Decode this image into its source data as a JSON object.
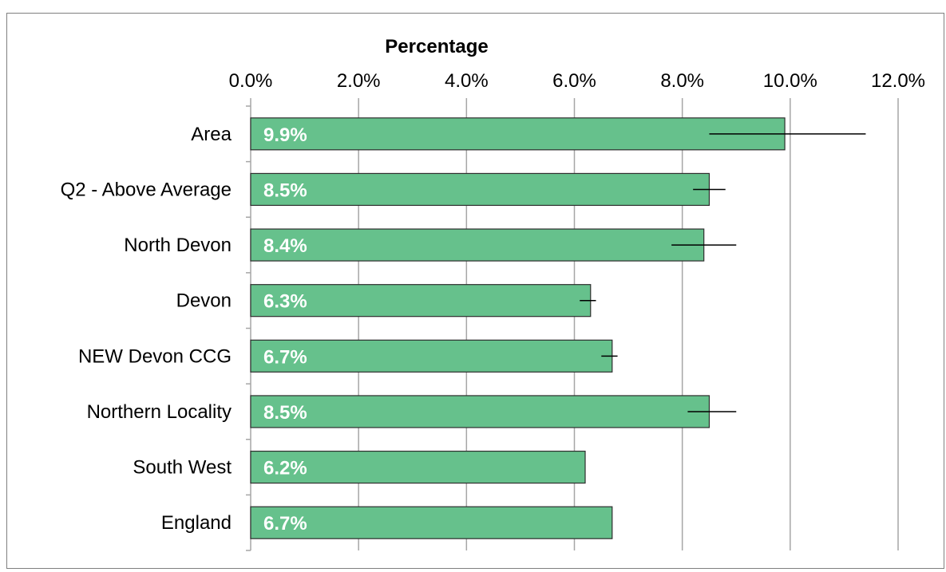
{
  "chart_data": {
    "type": "bar",
    "orientation": "horizontal",
    "xlabel": "Percentage",
    "xlim": [
      0,
      12
    ],
    "x_ticks": [
      "0.0%",
      "2.0%",
      "4.0%",
      "6.0%",
      "8.0%",
      "10.0%",
      "12.0%"
    ],
    "categories": [
      "Area",
      "Q2 - Above Average",
      "North Devon",
      "Devon",
      "NEW Devon CCG",
      "Northern Locality",
      "South West",
      "England"
    ],
    "values": [
      9.9,
      8.5,
      8.4,
      6.3,
      6.7,
      8.5,
      6.2,
      6.7
    ],
    "value_labels": [
      "9.9%",
      "8.5%",
      "8.4%",
      "6.3%",
      "6.7%",
      "8.5%",
      "6.2%",
      "6.7%"
    ],
    "error_bars": [
      {
        "low": 8.5,
        "high": 11.4
      },
      {
        "low": 8.2,
        "high": 8.8
      },
      {
        "low": 7.8,
        "high": 9.0
      },
      {
        "low": 6.1,
        "high": 6.4
      },
      {
        "low": 6.5,
        "high": 6.8
      },
      {
        "low": 8.1,
        "high": 9.0
      },
      null,
      null
    ],
    "grid": true,
    "legend": "none",
    "colors": {
      "bar_fill": "#66c18c",
      "bar_stroke": "#2e2e2e",
      "grid": "#a6a6a6",
      "error_bar": "#000000",
      "value_label": "#ffffff"
    }
  }
}
